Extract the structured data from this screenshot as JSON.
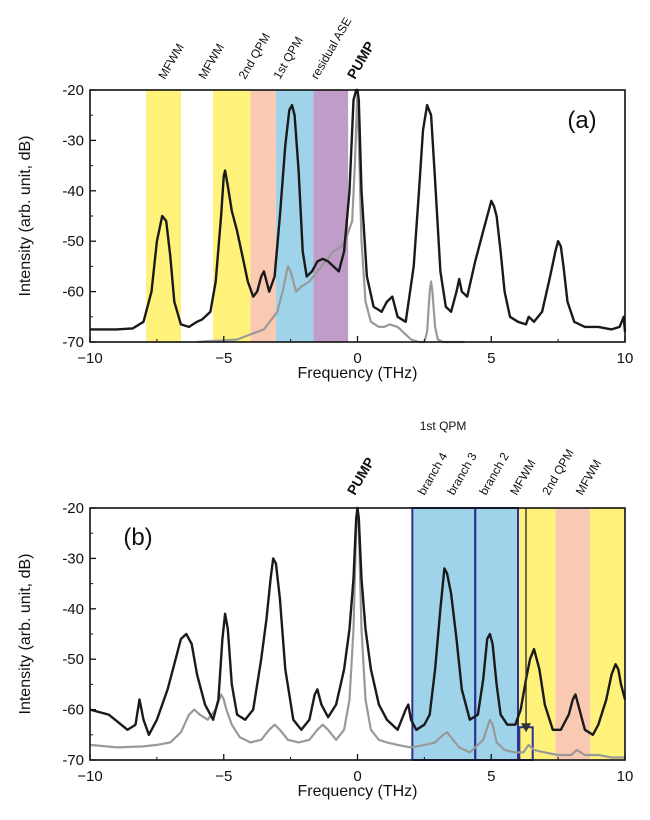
{
  "chart_data": [
    {
      "type": "line",
      "panel_label": "(a)",
      "xlabel": "Frequency (THz)",
      "ylabel": "Intensity (arb. unit, dB)",
      "xlim": [
        -10,
        10
      ],
      "ylim": [
        -70,
        -20
      ],
      "xticks": [
        -10,
        -5,
        0,
        5,
        10
      ],
      "xtick_labels": [
        "−10",
        "−5",
        "0",
        "5",
        "10"
      ],
      "yticks": [
        -70,
        -60,
        -50,
        -40,
        -30,
        -20
      ],
      "ytick_labels": [
        "-70",
        "-60",
        "-50",
        "-40",
        "-30",
        "-20"
      ],
      "grid": false,
      "bands": [
        {
          "x0": -7.9,
          "x1": -6.6,
          "color": "#fff27a"
        },
        {
          "x0": -5.4,
          "x1": -4.0,
          "color": "#fff27a"
        },
        {
          "x0": -4.0,
          "x1": -3.05,
          "color": "#f9c9b3"
        },
        {
          "x0": -3.05,
          "x1": -1.65,
          "color": "#9fd3ea"
        },
        {
          "x0": -1.65,
          "x1": -0.35,
          "color": "#c09cc9"
        }
      ],
      "band_labels": [
        {
          "text": "MFWM",
          "x": -7.2
        },
        {
          "text": "MFWM",
          "x": -5.7
        },
        {
          "text": "2nd QPM",
          "x": -4.2
        },
        {
          "text": "1st QPM",
          "x": -2.9
        },
        {
          "text": "residual ASE",
          "x": -1.5
        },
        {
          "text": "PUMP",
          "x": -0.1,
          "bold": true
        }
      ],
      "series": [
        {
          "color": "#1a1a1a",
          "x": [
            -10,
            -9,
            -8.4,
            -8,
            -7.7,
            -7.5,
            -7.3,
            -7.15,
            -7.0,
            -6.85,
            -6.6,
            -6.3,
            -6.0,
            -5.8,
            -5.5,
            -5.3,
            -5.1,
            -5.0,
            -4.95,
            -4.85,
            -4.7,
            -4.5,
            -4.3,
            -4.1,
            -3.9,
            -3.75,
            -3.6,
            -3.5,
            -3.3,
            -3.1,
            -2.9,
            -2.7,
            -2.55,
            -2.45,
            -2.35,
            -2.2,
            -2.05,
            -1.9,
            -1.7,
            -1.5,
            -1.3,
            -1.1,
            -0.9,
            -0.7,
            -0.5,
            -0.3,
            -0.15,
            -0.05,
            0,
            0.05,
            0.15,
            0.35,
            0.6,
            0.9,
            1.1,
            1.3,
            1.5,
            1.8,
            2.1,
            2.3,
            2.45,
            2.6,
            2.75,
            2.9,
            3.1,
            3.3,
            3.5,
            3.7,
            3.8,
            3.9,
            4.1,
            4.4,
            4.7,
            4.9,
            5.0,
            5.1,
            5.2,
            5.35,
            5.5,
            5.7,
            6.0,
            6.3,
            6.4,
            6.6,
            6.9,
            7.2,
            7.4,
            7.5,
            7.6,
            7.7,
            7.85,
            8.1,
            8.5,
            9,
            9.5,
            9.8,
            9.95,
            10
          ],
          "y": [
            -67.5,
            -67.5,
            -67.3,
            -66,
            -60,
            -50,
            -45,
            -46,
            -53,
            -62,
            -66.5,
            -67,
            -66,
            -65.5,
            -64,
            -58,
            -45,
            -37,
            -36,
            -39,
            -44,
            -48,
            -53,
            -58,
            -61,
            -60,
            -57,
            -56,
            -60,
            -57,
            -45,
            -31,
            -24,
            -23,
            -25,
            -36,
            -52,
            -57,
            -56,
            -54,
            -53.5,
            -54,
            -55,
            -56,
            -52,
            -40,
            -22,
            -20,
            -20,
            -22,
            -40,
            -57,
            -63,
            -64,
            -62,
            -61,
            -65,
            -66,
            -55,
            -40,
            -28,
            -23,
            -25,
            -38,
            -56,
            -63,
            -64,
            -60,
            -57.5,
            -60,
            -61,
            -54,
            -48,
            -44,
            -42,
            -43,
            -45,
            -52,
            -60,
            -65,
            -66,
            -66.5,
            -65,
            -66,
            -64,
            -57,
            -52,
            -50,
            -51,
            -55,
            -62,
            -66,
            -67,
            -67,
            -67.5,
            -67,
            -65,
            -68
          ]
        },
        {
          "color": "#999999",
          "x": [
            -6.0,
            -5.5,
            -5.0,
            -4.5,
            -4.0,
            -3.5,
            -3.0,
            -2.8,
            -2.6,
            -2.5,
            -2.3,
            -2.1,
            -1.8,
            -1.5,
            -1.2,
            -0.9,
            -0.6,
            -0.4,
            -0.2,
            -0.1,
            0,
            0.05,
            0.15,
            0.3,
            0.5,
            0.8,
            1.0,
            1.2,
            1.5,
            1.8,
            2.0,
            2.3,
            2.5,
            2.6,
            2.7,
            2.75,
            2.8,
            2.9,
            3.0,
            3.2,
            3.6,
            4.0
          ],
          "y": [
            -70,
            -69.8,
            -69.7,
            -69.5,
            -68.5,
            -67.5,
            -64,
            -60,
            -55,
            -56,
            -60,
            -59,
            -58,
            -56,
            -54,
            -52,
            -51,
            -49,
            -46,
            -35,
            -20,
            -30,
            -50,
            -62,
            -66,
            -67,
            -67,
            -66.5,
            -67,
            -68.5,
            -69.5,
            -70,
            -70,
            -68,
            -60,
            -58,
            -60,
            -67,
            -69.5,
            -70,
            -70,
            -70
          ]
        }
      ]
    },
    {
      "type": "line",
      "panel_label": "(b)",
      "xlabel": "Frequency (THz)",
      "ylabel": "Intensity (arb. unit, dB)",
      "xlim": [
        -10,
        10
      ],
      "ylim": [
        -70,
        -20
      ],
      "xticks": [
        -10,
        -5,
        0,
        5,
        10
      ],
      "xtick_labels": [
        "−10",
        "−5",
        "0",
        "5",
        "10"
      ],
      "yticks": [
        -70,
        -60,
        -50,
        -40,
        -30,
        -20
      ],
      "ytick_labels": [
        "-70",
        "-60",
        "-50",
        "-40",
        "-30",
        "-20"
      ],
      "grid": false,
      "bands": [
        {
          "x0": 2.05,
          "x1": 4.4,
          "color": "#9fd3ea"
        },
        {
          "x0": 4.4,
          "x1": 6.0,
          "color": "#9fd3ea"
        },
        {
          "x0": 6.0,
          "x1": 7.4,
          "color": "#fff27a"
        },
        {
          "x0": 7.4,
          "x1": 8.7,
          "color": "#f9c9b3"
        },
        {
          "x0": 8.7,
          "x1": 10.0,
          "color": "#fff27a"
        }
      ],
      "boxes": [
        {
          "x0": 2.05,
          "x1": 4.4,
          "y0": -70,
          "y1": -20
        },
        {
          "x0": 4.4,
          "x1": 6.0,
          "y0": -70,
          "y1": -20
        },
        {
          "x0": 6.05,
          "x1": 6.55,
          "y0": -70,
          "y1": -63.5
        }
      ],
      "arrow": {
        "x": 6.3,
        "y_from": -20,
        "y_to": -64.5
      },
      "group_label": {
        "text": "1st QPM",
        "x": 3.2
      },
      "band_labels": [
        {
          "text": "PUMP",
          "x": -0.1,
          "bold": true
        },
        {
          "text": "branch 4",
          "x": 2.5
        },
        {
          "text": "branch 3",
          "x": 3.6
        },
        {
          "text": "branch 2",
          "x": 4.8
        },
        {
          "text": "MFWM",
          "x": 5.95
        },
        {
          "text": "2nd QPM",
          "x": 7.15
        },
        {
          "text": "MFWM",
          "x": 8.4
        }
      ],
      "series": [
        {
          "color": "#1a1a1a",
          "x": [
            -10,
            -9.3,
            -8.6,
            -8.3,
            -8.15,
            -8.0,
            -7.8,
            -7.5,
            -7.1,
            -6.8,
            -6.6,
            -6.4,
            -6.2,
            -6.0,
            -5.7,
            -5.4,
            -5.2,
            -5.05,
            -4.95,
            -4.85,
            -4.7,
            -4.5,
            -4.2,
            -3.9,
            -3.6,
            -3.4,
            -3.25,
            -3.15,
            -3.05,
            -2.9,
            -2.7,
            -2.4,
            -2.1,
            -1.8,
            -1.6,
            -1.5,
            -1.35,
            -1.1,
            -0.8,
            -0.5,
            -0.3,
            -0.15,
            -0.05,
            0,
            0.05,
            0.15,
            0.3,
            0.5,
            0.8,
            1.1,
            1.5,
            1.8,
            1.9,
            2.0,
            2.2,
            2.5,
            2.7,
            2.9,
            3.1,
            3.25,
            3.35,
            3.5,
            3.7,
            3.9,
            4.2,
            4.5,
            4.7,
            4.85,
            4.95,
            5.05,
            5.2,
            5.35,
            5.6,
            5.9,
            6.1,
            6.3,
            6.45,
            6.6,
            6.8,
            7.0,
            7.3,
            7.6,
            7.9,
            8.05,
            8.15,
            8.3,
            8.5,
            8.8,
            9.0,
            9.3,
            9.5,
            9.65,
            9.75,
            9.85,
            10
          ],
          "y": [
            -60,
            -61,
            -64,
            -63,
            -58,
            -62,
            -65,
            -62,
            -56,
            -50,
            -46,
            -45,
            -47,
            -53,
            -59,
            -62,
            -58,
            -46,
            -41,
            -44,
            -55,
            -61,
            -62,
            -60,
            -50,
            -42,
            -34,
            -30,
            -31,
            -38,
            -52,
            -62,
            -64,
            -62,
            -57,
            -56,
            -59,
            -61.5,
            -59,
            -52,
            -44,
            -34,
            -22,
            -20,
            -22,
            -34,
            -44,
            -52,
            -59,
            -62,
            -64,
            -60,
            -59,
            -62,
            -64,
            -63,
            -61,
            -52,
            -40,
            -32,
            -33,
            -37,
            -46,
            -56,
            -62,
            -61,
            -54,
            -46,
            -45,
            -47,
            -55,
            -61,
            -63,
            -63,
            -60,
            -54,
            -50,
            -48,
            -52,
            -59,
            -64,
            -64,
            -61,
            -58,
            -57,
            -60,
            -64,
            -65,
            -63,
            -58,
            -53,
            -51,
            -52,
            -55,
            -58
          ]
        },
        {
          "color": "#999999",
          "x": [
            -10,
            -9,
            -8,
            -7.5,
            -7,
            -6.6,
            -6.3,
            -6.1,
            -5.9,
            -5.6,
            -5.3,
            -5.1,
            -5.0,
            -4.9,
            -4.7,
            -4.4,
            -4.0,
            -3.6,
            -3.3,
            -3.1,
            -2.9,
            -2.6,
            -2.2,
            -1.8,
            -1.5,
            -1.3,
            -1.1,
            -0.8,
            -0.5,
            -0.3,
            -0.15,
            -0.05,
            0,
            0.05,
            0.15,
            0.3,
            0.5,
            0.8,
            1.1,
            1.5,
            2.0,
            2.5,
            2.9,
            3.2,
            3.35,
            3.5,
            3.8,
            4.2,
            4.7,
            4.95,
            5.05,
            5.2,
            5.5,
            5.9,
            6.2,
            6.4,
            6.6,
            7.0,
            7.5,
            8.0,
            8.2,
            8.5,
            9.0,
            9.5,
            10
          ],
          "y": [
            -67,
            -67.5,
            -67.3,
            -67,
            -66.5,
            -64.5,
            -61,
            -60,
            -61,
            -62,
            -60,
            -57,
            -58,
            -60,
            -63,
            -65.5,
            -66.5,
            -66,
            -64,
            -63,
            -64,
            -66,
            -66.5,
            -66,
            -64,
            -63,
            -64,
            -66,
            -64,
            -58,
            -44,
            -24,
            -20,
            -24,
            -44,
            -58,
            -64,
            -66,
            -66.5,
            -67,
            -67.5,
            -67,
            -66.5,
            -65,
            -64.5,
            -65.5,
            -67.5,
            -68.5,
            -66,
            -62,
            -63,
            -66.5,
            -68,
            -68.5,
            -68.5,
            -67,
            -68,
            -68.5,
            -69,
            -69,
            -68,
            -69,
            -69,
            -69.5,
            -69.5
          ]
        }
      ]
    }
  ]
}
